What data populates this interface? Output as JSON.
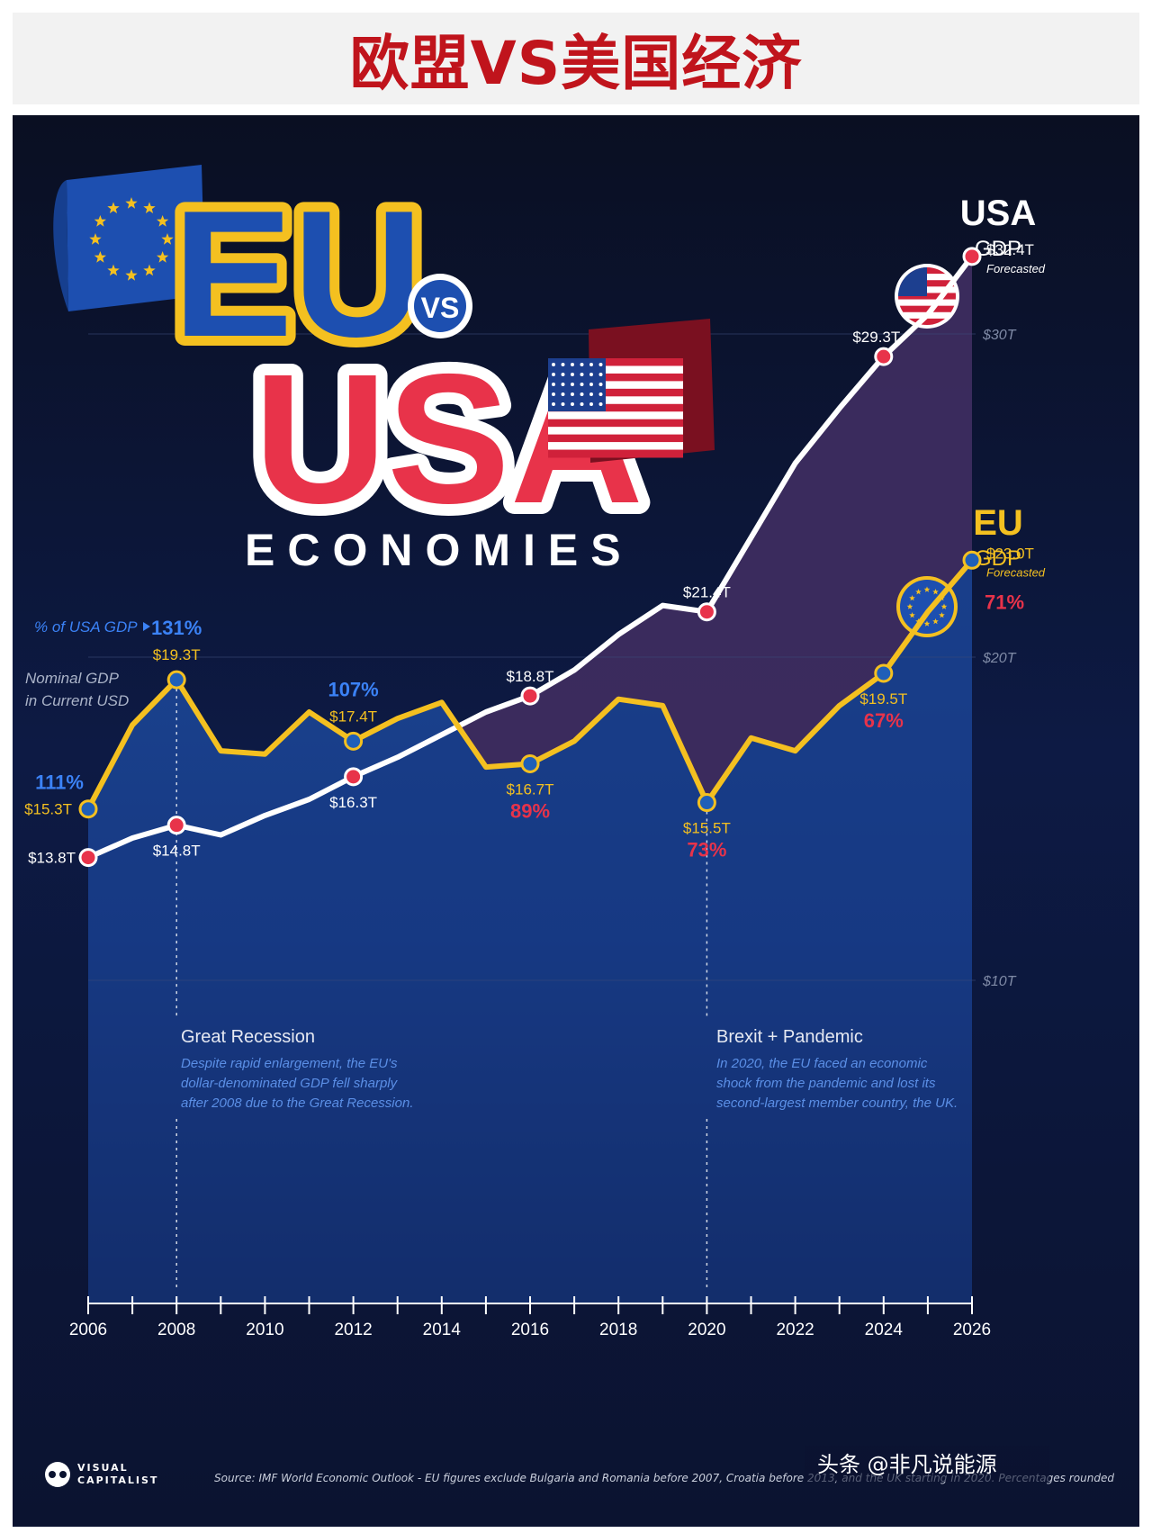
{
  "banner": {
    "title": "欧盟VS美国经济"
  },
  "hero": {
    "eu": "EU",
    "vs": "VS",
    "usa": "USA",
    "economies": "ECONOMIES"
  },
  "labels": {
    "pct_of_usa": "% of USA GDP",
    "nominal_line1": "Nominal GDP",
    "nominal_line2": "in Current USD",
    "usa_title": "USA",
    "usa_sub": "GDP",
    "eu_title": "EU",
    "eu_sub": "GDP",
    "forecasted": "Forecasted"
  },
  "annotations": [
    {
      "title": "Great Recession",
      "lines": [
        "Despite rapid enlargement, the EU's",
        "dollar-denominated GDP fell sharply",
        "after 2008 due to the Great Recession."
      ]
    },
    {
      "title": "Brexit + Pandemic",
      "lines": [
        "In 2020, the EU faced an economic",
        "shock from the pandemic and lost its",
        "second-largest member country, the UK."
      ]
    }
  ],
  "footer": {
    "logo_line1": "VISUAL",
    "logo_line2": "CAPITALIST",
    "source": "Source: IMF World Economic Outlook - EU figures exclude Bulgaria and Romania before 2007, Croatia before 2013, and the UK starting in 2020. Percentages rounded",
    "watermark": "头条 @非凡说能源"
  },
  "colors": {
    "usa": "#e8334a",
    "eu": "#f4c020",
    "eu_marker": "#1f5fb8",
    "pct_blue": "#3b82f6",
    "pct_red": "#e8334a",
    "background": "#0b1024"
  },
  "chart_data": {
    "type": "line",
    "x": [
      2006,
      2007,
      2008,
      2009,
      2010,
      2011,
      2012,
      2013,
      2014,
      2015,
      2016,
      2017,
      2018,
      2019,
      2020,
      2021,
      2022,
      2023,
      2024,
      2025,
      2026
    ],
    "x_tick_labels": [
      "2006",
      "2008",
      "2010",
      "2012",
      "2014",
      "2016",
      "2018",
      "2020",
      "2022",
      "2024",
      "2026"
    ],
    "y_tick_labels": [
      "$10T",
      "$20T",
      "$30T"
    ],
    "y_ticks": [
      10,
      20,
      30
    ],
    "ylim": [
      0,
      35
    ],
    "series": [
      {
        "name": "USA",
        "values": [
          13.8,
          14.4,
          14.8,
          14.5,
          15.1,
          15.6,
          16.3,
          16.9,
          17.6,
          18.3,
          18.8,
          19.6,
          20.7,
          21.6,
          21.4,
          23.7,
          26.0,
          27.7,
          29.3,
          30.6,
          32.4
        ]
      },
      {
        "name": "EU",
        "values": [
          15.3,
          17.9,
          19.3,
          17.1,
          17.0,
          18.3,
          17.4,
          18.1,
          18.6,
          16.6,
          16.7,
          17.4,
          18.7,
          18.5,
          15.5,
          17.5,
          17.1,
          18.5,
          19.5,
          21.4,
          23.0
        ]
      }
    ],
    "point_labels": {
      "usa": [
        {
          "x": 2006,
          "text": "$13.8T"
        },
        {
          "x": 2008,
          "text": "$14.8T"
        },
        {
          "x": 2012,
          "text": "$16.3T"
        },
        {
          "x": 2016,
          "text": "$18.8T"
        },
        {
          "x": 2020,
          "text": "$21.4T"
        },
        {
          "x": 2024,
          "text": "$29.3T"
        },
        {
          "x": 2026,
          "text": "$32.4T"
        }
      ],
      "eu": [
        {
          "x": 2006,
          "text": "$15.3T",
          "pct": "111%",
          "pct_color": "blue"
        },
        {
          "x": 2008,
          "text": "$19.3T",
          "pct": "131%",
          "pct_color": "blue"
        },
        {
          "x": 2012,
          "text": "$17.4T",
          "pct": "107%",
          "pct_color": "blue"
        },
        {
          "x": 2016,
          "text": "$16.7T",
          "pct": "89%",
          "pct_color": "red"
        },
        {
          "x": 2020,
          "text": "$15.5T",
          "pct": "73%",
          "pct_color": "red"
        },
        {
          "x": 2024,
          "text": "$19.5T",
          "pct": "67%",
          "pct_color": "red"
        },
        {
          "x": 2026,
          "text": "$23.0T",
          "pct": "71%",
          "pct_color": "red"
        }
      ]
    }
  }
}
